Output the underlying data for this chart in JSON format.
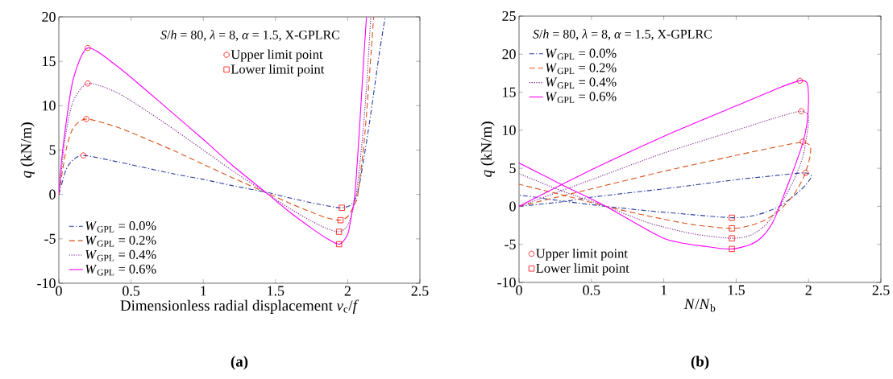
{
  "chart_data": [
    {
      "type": "line",
      "xlabel": "Dimensionless radial displacement *v*$_{c}$/*f*",
      "ylabel": "*q* (kN/m)",
      "annotations": [
        "*S*/*h* = 80, *λ* = 8, *α* = 1.5, X-GPLRC",
        "(a)"
      ],
      "xlim": [
        0,
        2.5
      ],
      "ylim": [
        -10,
        20
      ],
      "xticks": [
        0,
        0.5,
        1,
        1.5,
        2,
        2.5
      ],
      "yticks": [
        -10,
        -5,
        0,
        5,
        10,
        15,
        20
      ],
      "legend": "bottom left",
      "marker": "none",
      "series": [
        {
          "name": "*W*$_{GPL}$ = 0.0%",
          "color": "#2b3c9e",
          "line_style": "dashdot",
          "x": [
            0,
            0.05,
            0.1,
            0.17,
            0.4,
            0.6,
            0.8,
            1.0,
            1.2,
            1.45,
            1.6,
            1.8,
            1.95,
            2.02,
            2.05,
            2.08,
            2.15,
            2.22,
            2.26
          ],
          "values": [
            0,
            2.8,
            3.9,
            4.4,
            3.7,
            3.0,
            2.3,
            1.7,
            1.0,
            0.2,
            -0.4,
            -1.1,
            -1.5,
            -1.2,
            -0.5,
            1,
            8,
            16,
            20
          ]
        },
        {
          "name": "*W*$_{GPL}$ = 0.2%",
          "color": "#d95319",
          "line_style": "dashed",
          "x": [
            0,
            0.05,
            0.1,
            0.19,
            0.4,
            0.6,
            0.8,
            1.0,
            1.2,
            1.45,
            1.6,
            1.75,
            1.85,
            1.94,
            2.0,
            2.05,
            2.07,
            2.12,
            2.18
          ],
          "values": [
            0,
            5,
            7.5,
            8.5,
            7.6,
            6.3,
            4.9,
            3.4,
            1.9,
            0.1,
            -1.0,
            -2.0,
            -2.6,
            -2.9,
            -2.5,
            -1,
            0,
            7,
            20
          ]
        },
        {
          "name": "*W*$_{GPL}$ = 0.4%",
          "color": "#7e2f8e",
          "line_style": "dotted",
          "x": [
            0,
            0.02,
            0.05,
            0.1,
            0.2,
            0.4,
            0.6,
            0.8,
            1.0,
            1.2,
            1.45,
            1.6,
            1.75,
            1.85,
            1.94,
            2.0,
            2.04,
            2.06,
            2.1,
            2.13,
            2.16
          ],
          "values": [
            0,
            3,
            7,
            10.5,
            12.5,
            11.5,
            9.5,
            7.3,
            5.0,
            2.7,
            0,
            -1.6,
            -3.0,
            -3.8,
            -4.2,
            -3.5,
            -1.5,
            0,
            6,
            12,
            20
          ]
        },
        {
          "name": "*W*$_{GPL}$ = 0.6%",
          "color": "#ff00ff",
          "line_style": "solid",
          "x": [
            0,
            0.02,
            0.05,
            0.1,
            0.2,
            0.4,
            0.6,
            0.8,
            1.0,
            1.2,
            1.45,
            1.6,
            1.75,
            1.85,
            1.94,
            2.0,
            2.03,
            2.05,
            2.08,
            2.11,
            2.13
          ],
          "values": [
            0,
            4,
            8,
            13,
            16.5,
            14.5,
            11.8,
            9.0,
            6.2,
            3.3,
            0,
            -2.0,
            -3.8,
            -4.9,
            -5.6,
            -4.5,
            -2,
            0,
            7,
            15,
            20
          ]
        },
        {
          "name": "Upper limit point",
          "type": "scatter",
          "color": "#ff0000",
          "marker": "circle",
          "x": [
            0.17,
            0.19,
            0.2,
            0.2
          ],
          "values": [
            4.4,
            8.5,
            12.5,
            16.5
          ]
        },
        {
          "name": "Lower limit point",
          "type": "scatter",
          "color": "#ff0000",
          "marker": "square",
          "x": [
            1.96,
            1.95,
            1.94,
            1.94
          ],
          "values": [
            -1.5,
            -2.9,
            -4.2,
            -5.6
          ]
        }
      ]
    },
    {
      "type": "line",
      "xlabel": "*N*/*N*$_{b}$",
      "ylabel": "*q* (kN/m)",
      "annotations": [
        "*S*/*h* = 80, *λ* = 8, *α* = 1.5, X-GPLRC",
        "(b)"
      ],
      "xlim": [
        0,
        2.5
      ],
      "ylim": [
        -10,
        25
      ],
      "xticks": [
        0,
        0.5,
        1,
        1.5,
        2,
        2.5
      ],
      "yticks": [
        -10,
        -5,
        0,
        5,
        10,
        15,
        20,
        25
      ],
      "legend": "left",
      "marker": "none",
      "series": [
        {
          "name": "*W*$_{GPL}$ = 0.0%",
          "color": "#2b3c9e",
          "line_style": "dashdot",
          "x": [
            0,
            0.3,
            0.5,
            1.0,
            1.5,
            1.8,
            1.97,
            2.02,
            1.98,
            1.9,
            1.8,
            1.7,
            1.6,
            1.47,
            1.2,
            0.9,
            0.6,
            0.3,
            0
          ],
          "values": [
            0,
            0.6,
            1.2,
            2.3,
            3.5,
            4.1,
            4.4,
            4.0,
            2.8,
            1.4,
            0,
            -0.8,
            -1.3,
            -1.5,
            -1.1,
            -0.6,
            0,
            0.7,
            1.5
          ]
        },
        {
          "name": "*W*$_{GPL}$ = 0.2%",
          "color": "#d95319",
          "line_style": "dashed",
          "x": [
            0,
            0.5,
            1.0,
            1.5,
            1.8,
            1.95,
            2.01,
            2.01,
            1.97,
            1.9,
            1.8,
            1.7,
            1.6,
            1.47,
            1.2,
            0.9,
            0.6,
            0.3,
            0
          ],
          "values": [
            0,
            2.3,
            4.6,
            6.7,
            7.9,
            8.4,
            8.0,
            6.5,
            4,
            1.6,
            -0.5,
            -1.8,
            -2.5,
            -2.9,
            -2.4,
            -1.3,
            0,
            1.5,
            2.9
          ]
        },
        {
          "name": "*W*$_{GPL}$ = 0.4%",
          "color": "#7e2f8e",
          "line_style": "dotted",
          "x": [
            0,
            0.5,
            1.0,
            1.5,
            1.8,
            1.95,
            2.0,
            1.99,
            1.96,
            1.9,
            1.8,
            1.7,
            1.6,
            1.47,
            1.2,
            0.9,
            0.6,
            0.3,
            0
          ],
          "values": [
            0,
            3.5,
            7.0,
            10.0,
            11.8,
            12.5,
            11.8,
            9.5,
            6.5,
            3.5,
            0,
            -2.5,
            -3.8,
            -4.2,
            -3.6,
            -2.2,
            0,
            2.0,
            4.3
          ]
        },
        {
          "name": "*W*$_{GPL}$ = 0.6%",
          "color": "#ff00ff",
          "line_style": "solid",
          "x": [
            0,
            0.5,
            1.0,
            1.5,
            1.8,
            1.94,
            1.99,
            2.0,
            1.99,
            1.96,
            1.9,
            1.85,
            1.8,
            1.75,
            1.68,
            1.6,
            1.47,
            1.3,
            1.0,
            0.6,
            0.3,
            0
          ],
          "values": [
            0,
            4.8,
            9.2,
            13.2,
            15.6,
            16.5,
            16.2,
            14,
            11,
            8.3,
            5,
            2.5,
            0,
            -2.2,
            -4,
            -5,
            -5.6,
            -5.3,
            -4.2,
            0,
            2.8,
            5.7
          ]
        },
        {
          "name": "Upper limit point",
          "type": "scatter",
          "color": "#ff0000",
          "marker": "circle",
          "x": [
            1.98,
            1.96,
            1.95,
            1.94
          ],
          "values": [
            4.4,
            8.5,
            12.5,
            16.5
          ]
        },
        {
          "name": "Lower limit point",
          "type": "scatter",
          "color": "#ff0000",
          "marker": "square",
          "x": [
            1.47,
            1.47,
            1.47,
            1.47
          ],
          "values": [
            -1.5,
            -2.9,
            -4.2,
            -5.6
          ]
        }
      ]
    }
  ]
}
